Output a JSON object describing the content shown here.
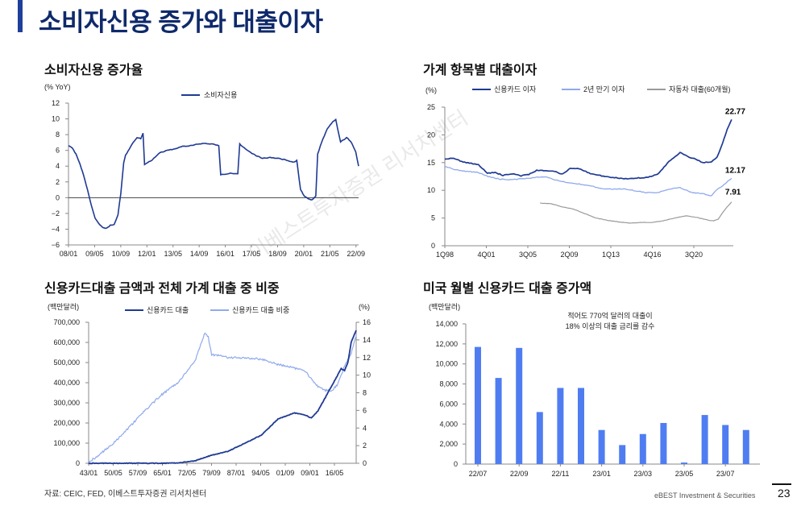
{
  "title": "소비자신용 증가와 대출이자",
  "footer": {
    "source": "자료: CEIC, FED, 이베스트투자증권 리서치센터",
    "brand": "eBEST Investment & Securities",
    "page_number": "23"
  },
  "watermark": "이베스트투자증권 리서치센터",
  "chart_data": [
    {
      "type": "line",
      "title": "소비자신용 증가율",
      "ylabel": "(% YoY)",
      "ylim": [
        -6,
        12
      ],
      "yticks": [
        "12",
        "10",
        "8",
        "6",
        "4",
        "2",
        "0",
        "−2",
        "−4",
        "−6"
      ],
      "xticks": [
        "08/01",
        "09/05",
        "10/09",
        "12/01",
        "13/05",
        "14/09",
        "16/01",
        "17/05",
        "18/09",
        "20/01",
        "21/05",
        "22/09"
      ],
      "x_range": [
        2008.0,
        2023.25
      ],
      "series": [
        {
          "name": "소비자신용",
          "color": "#1f3a93",
          "x": [
            2008.0,
            2008.2,
            2008.4,
            2008.6,
            2008.8,
            2009.0,
            2009.2,
            2009.4,
            2009.6,
            2009.8,
            2010.0,
            2010.2,
            2010.4,
            2010.6,
            2010.75,
            2010.9,
            2011.0,
            2011.2,
            2011.4,
            2011.6,
            2011.8,
            2011.92,
            2012.0,
            2012.4,
            2012.8,
            2013.2,
            2013.6,
            2014.0,
            2014.4,
            2014.8,
            2015.2,
            2015.6,
            2015.9,
            2016.0,
            2016.5,
            2016.9,
            2017.0,
            2017.4,
            2017.8,
            2018.2,
            2018.6,
            2019.0,
            2019.4,
            2019.8,
            2020.0,
            2020.2,
            2020.4,
            2020.6,
            2020.8,
            2021.0,
            2021.1,
            2021.3,
            2021.6,
            2021.9,
            2022.05,
            2022.3,
            2022.5,
            2022.62,
            2022.7,
            2022.9,
            2023.1,
            2023.25
          ],
          "values": [
            6.6,
            6.3,
            5.5,
            4.3,
            2.8,
            1.0,
            -1.0,
            -2.6,
            -3.3,
            -3.8,
            -3.9,
            -3.5,
            -3.4,
            -2.2,
            0.5,
            4.4,
            5.4,
            6.2,
            7.0,
            7.6,
            7.5,
            8.2,
            4.2,
            4.8,
            5.7,
            6.0,
            6.2,
            6.5,
            6.6,
            6.8,
            6.9,
            6.8,
            6.6,
            2.9,
            3.1,
            3.0,
            6.8,
            6.0,
            5.4,
            5.0,
            5.1,
            5.0,
            4.8,
            4.5,
            4.7,
            1.0,
            0.2,
            -0.1,
            -0.3,
            0.2,
            5.5,
            7.0,
            8.7,
            9.7,
            9.9,
            7.1,
            7.4,
            7.6,
            7.5,
            6.9,
            5.8,
            4.0
          ]
        }
      ]
    },
    {
      "type": "line",
      "title": "가계 항목별 대출이자",
      "ylabel": "(%)",
      "ylim": [
        0,
        25
      ],
      "yticks": [
        "25",
        "20",
        "15",
        "10",
        "5",
        "0"
      ],
      "xticks": [
        "1Q98",
        "4Q01",
        "3Q05",
        "2Q09",
        "1Q13",
        "4Q16",
        "3Q20"
      ],
      "x_range": [
        1998.0,
        2023.75
      ],
      "series": [
        {
          "name": "신용카드 이자",
          "color": "#1f3a93",
          "end_label": "22.77",
          "x": [
            1998.0,
            1998.8,
            1999.5,
            2000.2,
            2001.0,
            2001.8,
            2002.5,
            2003.2,
            2004.0,
            2004.8,
            2005.5,
            2006.2,
            2007.0,
            2007.8,
            2008.5,
            2009.2,
            2010.0,
            2011.0,
            2012.0,
            2013.0,
            2014.0,
            2015.0,
            2016.0,
            2017.0,
            2018.0,
            2019.0,
            2019.8,
            2020.4,
            2021.0,
            2021.8,
            2022.3,
            2022.8,
            2023.2,
            2023.6
          ],
          "values": [
            15.6,
            15.8,
            15.2,
            14.9,
            14.6,
            13.1,
            13.2,
            12.7,
            13.0,
            12.6,
            12.9,
            13.6,
            13.5,
            13.4,
            12.9,
            14.0,
            13.9,
            13.0,
            12.6,
            12.3,
            12.1,
            12.2,
            12.3,
            12.9,
            15.2,
            16.8,
            16.0,
            15.6,
            15.0,
            15.1,
            16.0,
            18.5,
            21.0,
            22.77
          ]
        },
        {
          "name": "2년 만기 이자",
          "color": "#8fa9ec",
          "end_label": "12.17",
          "x": [
            1998.0,
            1999.0,
            2000.0,
            2001.0,
            2002.0,
            2003.0,
            2004.0,
            2005.0,
            2006.0,
            2007.0,
            2008.0,
            2009.0,
            2010.0,
            2011.0,
            2012.0,
            2013.0,
            2014.0,
            2015.0,
            2016.0,
            2017.0,
            2018.0,
            2019.0,
            2020.0,
            2021.0,
            2021.8,
            2022.3,
            2022.8,
            2023.2,
            2023.6
          ],
          "values": [
            14.3,
            13.7,
            13.4,
            13.2,
            12.4,
            12.0,
            11.9,
            12.1,
            12.3,
            12.4,
            11.8,
            11.4,
            11.1,
            10.8,
            10.3,
            10.2,
            10.3,
            9.9,
            9.6,
            9.6,
            10.2,
            10.5,
            9.6,
            9.4,
            9.0,
            10.2,
            10.8,
            11.5,
            12.17
          ]
        },
        {
          "name": "자동차 대출(60개월)",
          "color": "#9a9a9a",
          "end_label": "7.91",
          "x": [
            2006.5,
            2007.5,
            2008.5,
            2009.5,
            2010.5,
            2011.5,
            2012.5,
            2013.5,
            2014.5,
            2015.5,
            2016.5,
            2017.5,
            2018.5,
            2019.5,
            2020.5,
            2021.5,
            2022.0,
            2022.4,
            2022.8,
            2023.2,
            2023.6
          ],
          "values": [
            7.7,
            7.6,
            7.0,
            6.6,
            5.8,
            5.0,
            4.6,
            4.3,
            4.1,
            4.2,
            4.2,
            4.5,
            5.0,
            5.4,
            5.1,
            4.6,
            4.5,
            4.8,
            6.0,
            7.0,
            7.91
          ]
        }
      ]
    },
    {
      "type": "line",
      "title": "신용카드대출 금액과 전체 가계 대출 중 비중",
      "ylabel": "(백만달러)",
      "ylabel_right": "(%)",
      "ylim": [
        0,
        700000
      ],
      "ylim_right": [
        0,
        16
      ],
      "yticks": [
        "700,000",
        "600,000",
        "500,000",
        "400,000",
        "300,000",
        "200,000",
        "100,000",
        "0"
      ],
      "yticks_right": [
        "16",
        "14",
        "12",
        "10",
        "8",
        "6",
        "4",
        "2",
        "0"
      ],
      "xticks": [
        "43/01",
        "50/05",
        "57/09",
        "65/01",
        "72/05",
        "79/09",
        "87/01",
        "94/05",
        "01/09",
        "09/01",
        "16/05"
      ],
      "x_range": [
        1943.0,
        2023.5
      ],
      "series": [
        {
          "name": "신용카드 대출",
          "color": "#1f3a93",
          "axis": "left",
          "x": [
            1943,
            1955,
            1965,
            1970,
            1975,
            1980,
            1985,
            1990,
            1995,
            2000,
            2005,
            2008,
            2010,
            2012,
            2014,
            2016,
            2018,
            2019,
            2020,
            2021,
            2022,
            2023.5
          ],
          "values": [
            0,
            0,
            0,
            2000,
            12000,
            40000,
            60000,
            100000,
            140000,
            220000,
            250000,
            240000,
            225000,
            260000,
            320000,
            380000,
            440000,
            470000,
            460000,
            500000,
            600000,
            660000
          ]
        },
        {
          "name": "신용카드 대출 비중",
          "color": "#8fa9ec",
          "axis": "right",
          "x": [
            1943,
            1945,
            1947,
            1950,
            1955,
            1960,
            1965,
            1970,
            1975,
            1978,
            1979,
            1980,
            1982,
            1985,
            1990,
            1995,
            2000,
            2005,
            2008,
            2010,
            2012,
            2014,
            2016,
            2018,
            2020,
            2022,
            2023.5
          ],
          "values": [
            0.2,
            0.6,
            1.2,
            2.1,
            4.0,
            6.0,
            7.8,
            9.2,
            11.6,
            14.8,
            14.3,
            12.3,
            12.3,
            12.0,
            12.0,
            11.8,
            11.2,
            10.8,
            10.5,
            9.6,
            8.7,
            8.3,
            8.2,
            9.0,
            11.0,
            12.4,
            14.5
          ]
        }
      ]
    },
    {
      "type": "bar",
      "title": "미국 월별 신용카드 대출 증가액",
      "ylabel": "(백만달러)",
      "ylim": [
        0,
        14000
      ],
      "yticks": [
        "14,000",
        "12,000",
        "10,000",
        "8,000",
        "6,000",
        "4,000",
        "2,000",
        "0"
      ],
      "xtick_labels": [
        "22/07",
        "22/09",
        "22/11",
        "23/01",
        "23/03",
        "23/05",
        "23/07"
      ],
      "categories": [
        "22/07",
        "22/08",
        "22/09",
        "22/10",
        "22/11",
        "22/12",
        "23/01",
        "23/02",
        "23/03",
        "23/04",
        "23/05",
        "23/06",
        "23/07",
        "23/08"
      ],
      "values": [
        11700,
        8600,
        11600,
        5200,
        7600,
        7600,
        3400,
        1900,
        3000,
        4100,
        150,
        4900,
        3900,
        3400
      ],
      "color": "#4f7df1",
      "annotation": [
        "적어도 770억 달러의 대출이",
        "18% 이상의 대출 금리를 감수"
      ]
    }
  ]
}
